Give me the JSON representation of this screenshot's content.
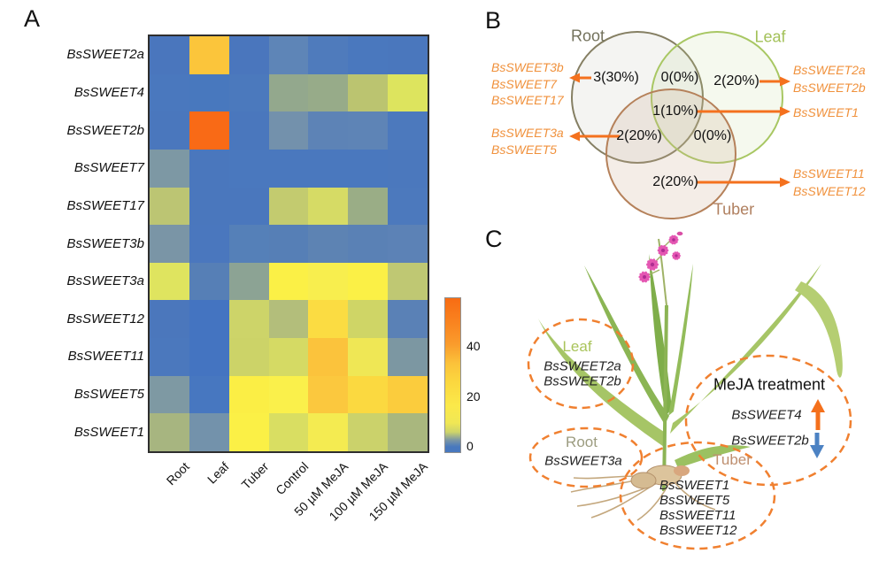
{
  "panels": {
    "a_label": "A",
    "b_label": "B",
    "c_label": "C"
  },
  "chart_data": {
    "type": "heatmap",
    "rows": [
      "BsSWEET2a",
      "BsSWEET4",
      "BsSWEET2b",
      "BsSWEET7",
      "BsSWEET17",
      "BsSWEET3b",
      "BsSWEET3a",
      "BsSWEET12",
      "BsSWEET11",
      "BsSWEET5",
      "BsSWEET1"
    ],
    "columns": [
      "Root",
      "Leaf",
      "Tuber",
      "Control",
      "50 µM MeJA",
      "100 µM MeJA",
      "150 µM MeJA"
    ],
    "values_estimated": [
      [
        0,
        32,
        0,
        2,
        1,
        0,
        0
      ],
      [
        0,
        0,
        0,
        5,
        5,
        8,
        12
      ],
      [
        0,
        52,
        0,
        3,
        2,
        2,
        0
      ],
      [
        3,
        0,
        0,
        0,
        0,
        0,
        0
      ],
      [
        8,
        0,
        0,
        9,
        10,
        5,
        0
      ],
      [
        3,
        0,
        1,
        1,
        2,
        1,
        2
      ],
      [
        12,
        1,
        4,
        18,
        16,
        18,
        8
      ],
      [
        0,
        0,
        9,
        7,
        25,
        9,
        1
      ],
      [
        0,
        0,
        9,
        10,
        32,
        15,
        3
      ],
      [
        3,
        0,
        17,
        17,
        30,
        26,
        28
      ],
      [
        6,
        3,
        18,
        11,
        15,
        9,
        6
      ]
    ],
    "cell_colors": [
      [
        "#4A76BD",
        "#FBC53B",
        "#4A76BD",
        "#5E85B7",
        "#4F7BBC",
        "#4A78BE",
        "#4A77BD"
      ],
      [
        "#4A78BE",
        "#4878BE",
        "#4B79BD",
        "#93A88D",
        "#97AB89",
        "#BBC470",
        "#DDE45E"
      ],
      [
        "#4A77BD",
        "#F96A16",
        "#4A77BD",
        "#7391AC",
        "#5D83B6",
        "#5E84B6",
        "#4C79BD"
      ],
      [
        "#7D98A4",
        "#4A77BD",
        "#4A78BE",
        "#4A78BE",
        "#4A78BE",
        "#4A78BE",
        "#4B78BD"
      ],
      [
        "#BCC573",
        "#4A77BD",
        "#4A77BD",
        "#C3CB6F",
        "#D6DB65",
        "#9AAD86",
        "#4C79BD"
      ],
      [
        "#7A95A6",
        "#4A77BE",
        "#5580B8",
        "#567FB6",
        "#5D83B3",
        "#5A81B5",
        "#5C82B6"
      ],
      [
        "#DFE45F",
        "#567FB6",
        "#8CA394",
        "#FBF046",
        "#F8EE4E",
        "#FBF046",
        "#BFC873"
      ],
      [
        "#4B77BC",
        "#4474C1",
        "#CDD469",
        "#B3BE7B",
        "#FBDC42",
        "#CFD566",
        "#5A81B6"
      ],
      [
        "#4B78BD",
        "#4474C1",
        "#CCD368",
        "#D5DA64",
        "#FBC33C",
        "#EFE755",
        "#7C97A2"
      ],
      [
        "#7E99A3",
        "#4777C0",
        "#FBEE45",
        "#FAF04B",
        "#FBC83E",
        "#FBD940",
        "#FBCC3D"
      ],
      [
        "#A7B580",
        "#7392AB",
        "#FBF046",
        "#D9DE62",
        "#F4EB51",
        "#CBD26B",
        "#A9B77E"
      ]
    ],
    "colorbar": {
      "ticks": [
        "0",
        "20",
        "40"
      ],
      "range": [
        0,
        55
      ],
      "gradient": [
        "#4878BE",
        "#F0E755",
        "#FBC13A",
        "#F86C13"
      ]
    }
  },
  "venn": {
    "sets": [
      {
        "name": "Root",
        "label_color": "#72715B",
        "stroke": "#857F63"
      },
      {
        "name": "Leaf",
        "label_color": "#A3C159",
        "stroke": "#A8C763"
      },
      {
        "name": "Tuber",
        "label_color": "#B08060",
        "stroke": "#B5815A"
      }
    ],
    "regions": [
      {
        "region": "Root only",
        "count": "3(30%)",
        "genes": [
          "BsSWEET3b",
          "BsSWEET7",
          "BsSWEET17"
        ]
      },
      {
        "region": "Root∩Leaf",
        "count": "0(0%)",
        "genes": []
      },
      {
        "region": "Leaf only",
        "count": "2(20%)",
        "genes": [
          "BsSWEET2a",
          "BsSWEET2b"
        ]
      },
      {
        "region": "Root∩Leaf∩Tuber",
        "count": "1(10%)",
        "genes": [
          "BsSWEET1"
        ]
      },
      {
        "region": "Root∩Tuber",
        "count": "2(20%)",
        "genes": [
          "BsSWEET3a",
          "BsSWEET5"
        ]
      },
      {
        "region": "Leaf∩Tuber",
        "count": "0(0%)",
        "genes": []
      },
      {
        "region": "Tuber only",
        "count": "2(20%)",
        "genes": [
          "BsSWEET11",
          "BsSWEET12"
        ]
      }
    ],
    "arrow_color": "#F4711E",
    "gene_text_color": "#F0913C"
  },
  "plant_panel": {
    "groups": [
      {
        "name": "Leaf",
        "label_color": "#A9C45B",
        "genes": [
          "BsSWEET2a",
          "BsSWEET2b"
        ]
      },
      {
        "name": "Root",
        "label_color": "#9C9C80",
        "genes": [
          "BsSWEET3a"
        ]
      },
      {
        "name": "Tuber",
        "label_color": "#BE8F6F",
        "genes": [
          "BsSWEET1",
          "BsSWEET5",
          "BsSWEET11",
          "BsSWEET12"
        ]
      },
      {
        "name": "MeJA treatment",
        "label_color": "#1a1a1a",
        "genes": [
          {
            "gene": "BsSWEET4",
            "direction": "up"
          },
          {
            "gene": "BsSWEET2b",
            "direction": "down"
          }
        ]
      }
    ],
    "colors": {
      "dashed_ellipse": "#F08030",
      "up_arrow": "#F4701C",
      "down_arrow": "#4C82C3"
    }
  }
}
